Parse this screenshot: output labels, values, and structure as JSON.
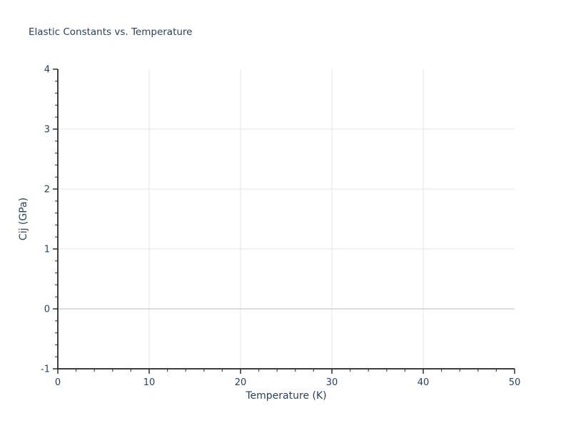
{
  "title": "Elastic Constants vs. Temperature",
  "colors": {
    "background": "#ffffff",
    "text": "#2a3f5f",
    "axis_line": "#212121",
    "major_tick": "#212121",
    "minor_tick": "#4a4a4a",
    "grid": "#e6e6e6",
    "zero_line": "#d2d2d2"
  },
  "chart_data": {
    "type": "line",
    "title": "Elastic Constants vs. Temperature",
    "xlabel": "Temperature (K)",
    "ylabel": "Cij (GPa)",
    "xlim": [
      0,
      50
    ],
    "ylim": [
      -1,
      4
    ],
    "x_ticks": [
      0,
      10,
      20,
      30,
      40,
      50
    ],
    "y_ticks": [
      -1,
      0,
      1,
      2,
      3,
      4
    ],
    "x_tick_labels": [
      "0",
      "10",
      "20",
      "30",
      "40",
      "50"
    ],
    "y_tick_labels": [
      "-1",
      "0",
      "1",
      "2",
      "3",
      "4"
    ],
    "x_minor_tick_step": 2,
    "y_minor_tick_step": 0.2,
    "grid": true,
    "x_gridlines": [
      10,
      20,
      30,
      40
    ],
    "y_gridlines": [
      0,
      1,
      2,
      3
    ],
    "zero_line_value": 0,
    "legend": "none",
    "series": []
  }
}
